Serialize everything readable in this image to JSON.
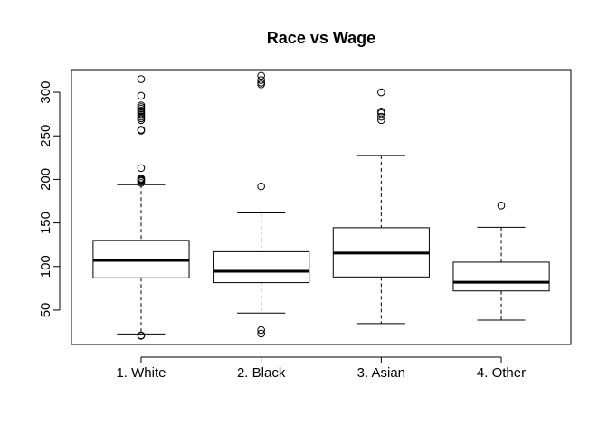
{
  "chart_data": {
    "type": "box",
    "title": "Race vs Wage",
    "xlabel": "",
    "ylabel": "",
    "categories": [
      "1. White",
      "2. Black",
      "3. Asian",
      "4. Other"
    ],
    "ylim": [
      10.5,
      326
    ],
    "yticks": [
      50,
      100,
      150,
      200,
      250,
      300
    ],
    "grid": false,
    "legend": "none",
    "boxes": [
      {
        "category": "1. White",
        "whisker_low": 22.5,
        "q1": 87,
        "median": 107,
        "q3": 130,
        "whisker_high": 194,
        "outliers": [
          20.5,
          21,
          196,
          198,
          199,
          200,
          201,
          213,
          256,
          257,
          268,
          270,
          272,
          274,
          276,
          278,
          279,
          281,
          283,
          285,
          296,
          315
        ]
      },
      {
        "category": "2. Black",
        "whisker_low": 46.5,
        "q1": 81.5,
        "median": 94.5,
        "q3": 117,
        "whisker_high": 161.5,
        "outliers": [
          23,
          27,
          192,
          309,
          311,
          314,
          319
        ]
      },
      {
        "category": "3. Asian",
        "whisker_low": 34.5,
        "q1": 88,
        "median": 115.5,
        "q3": 144.5,
        "whisker_high": 227.5,
        "outliers": [
          268,
          272,
          276,
          278,
          300
        ]
      },
      {
        "category": "4. Other",
        "whisker_low": 38.5,
        "q1": 72,
        "median": 82,
        "q3": 105,
        "whisker_high": 145,
        "outliers": [
          170
        ]
      }
    ]
  }
}
